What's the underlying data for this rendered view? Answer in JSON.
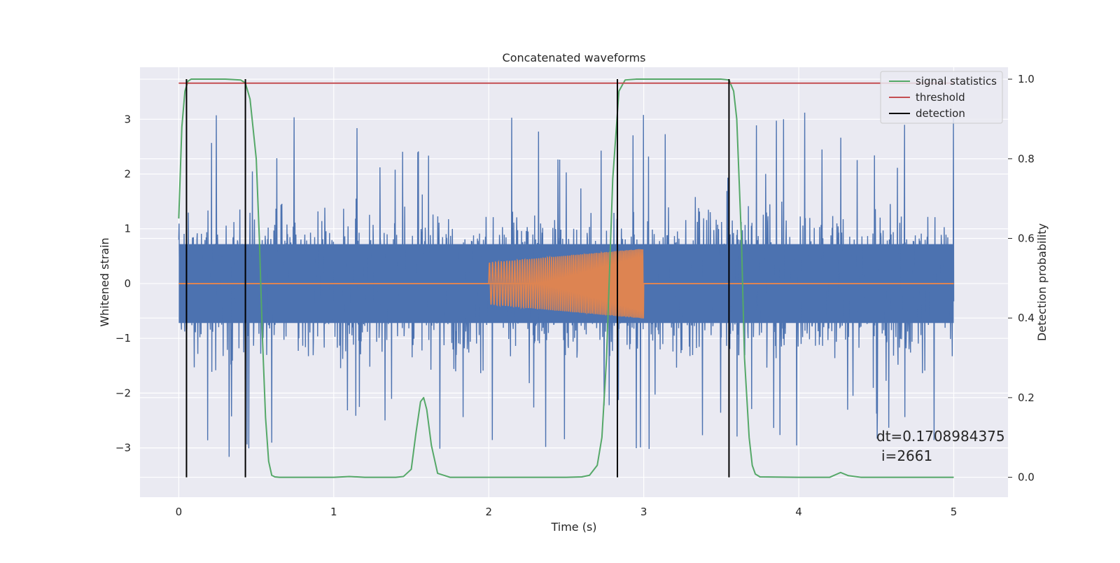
{
  "chart_data": {
    "type": "line",
    "title": "Concatenated waveforms",
    "xlabel": "Time (s)",
    "ylabel": "Whitened strain",
    "y2label": "Detection probability",
    "xlim": [
      -0.25,
      5.35
    ],
    "ylim": [
      -3.9,
      3.95
    ],
    "y2lim": [
      -0.05,
      1.03
    ],
    "x_ticks": [
      "0",
      "1",
      "2",
      "3",
      "4",
      "5"
    ],
    "x_tick_values": [
      0,
      1,
      2,
      3,
      4,
      5
    ],
    "y_ticks": [
      "−3",
      "−2",
      "−1",
      "0",
      "1",
      "2",
      "3"
    ],
    "y_tick_values": [
      -3,
      -2,
      -1,
      0,
      1,
      2,
      3
    ],
    "y2_ticks": [
      "0.0",
      "0.2",
      "0.4",
      "0.6",
      "0.8",
      "1.0"
    ],
    "y2_tick_values": [
      0.0,
      0.2,
      0.4,
      0.6,
      0.8,
      1.0
    ],
    "grid": true,
    "legend_position": "top-right",
    "colors": {
      "strain": "#4c72b0",
      "template": "#dd8452",
      "signal_statistics": "#55a868",
      "threshold": "#c44e52",
      "detection": "#000000",
      "background": "#eaeaf2"
    },
    "legend": [
      {
        "name": "signal statistics",
        "color": "#55a868"
      },
      {
        "name": "threshold",
        "color": "#c44e52"
      },
      {
        "name": "detection",
        "color": "#000000"
      }
    ],
    "series": [
      {
        "name": "signal statistics",
        "axis": "right",
        "x": [
          0.0,
          0.02,
          0.04,
          0.06,
          0.08,
          0.1,
          0.2,
          0.3,
          0.4,
          0.43,
          0.46,
          0.5,
          0.52,
          0.54,
          0.56,
          0.58,
          0.6,
          0.62,
          0.65,
          0.7,
          0.8,
          1.0,
          1.1,
          1.2,
          1.4,
          1.45,
          1.5,
          1.53,
          1.56,
          1.58,
          1.6,
          1.63,
          1.67,
          1.75,
          2.0,
          2.5,
          2.6,
          2.65,
          2.7,
          2.73,
          2.76,
          2.8,
          2.84,
          2.88,
          2.95,
          3.1,
          3.3,
          3.5,
          3.55,
          3.58,
          3.6,
          3.63,
          3.65,
          3.68,
          3.7,
          3.72,
          3.75,
          4.0,
          4.2,
          4.27,
          4.32,
          4.4,
          4.6,
          4.8,
          5.0
        ],
        "y": [
          0.65,
          0.88,
          0.97,
          0.995,
          1.0,
          1.0,
          1.0,
          1.0,
          0.998,
          0.99,
          0.95,
          0.8,
          0.6,
          0.35,
          0.15,
          0.04,
          0.005,
          0.001,
          0.0,
          0.0,
          0.0,
          0.0,
          0.002,
          0.0,
          0.0,
          0.002,
          0.02,
          0.11,
          0.19,
          0.2,
          0.17,
          0.08,
          0.01,
          0.0,
          0.0,
          0.0,
          0.001,
          0.005,
          0.03,
          0.1,
          0.3,
          0.75,
          0.97,
          0.998,
          1.0,
          1.0,
          1.0,
          1.0,
          0.998,
          0.97,
          0.9,
          0.6,
          0.3,
          0.1,
          0.03,
          0.008,
          0.001,
          0.0,
          0.0,
          0.012,
          0.004,
          0.0,
          0.0,
          0.0,
          0.0
        ]
      },
      {
        "name": "threshold",
        "axis": "right",
        "x": [
          0.0,
          5.0
        ],
        "y": [
          0.99,
          0.99
        ]
      },
      {
        "name": "detection",
        "axis": "right",
        "type": "vlines",
        "x": [
          0.05,
          0.43,
          2.83,
          3.55
        ],
        "ymin": 0.0,
        "ymax": 1.0
      }
    ],
    "strain_waveform": {
      "axis": "left",
      "x_range": [
        0.0,
        5.0
      ],
      "core_band": [
        -0.72,
        0.72
      ],
      "typical_peak_range": [
        -2.2,
        2.1
      ],
      "max_peak": 3.6,
      "min_peak": -3.6
    },
    "template_waveform": {
      "axis": "left",
      "baseline_x": [
        0.0,
        5.0
      ],
      "baseline_y": 0.0,
      "chirp_x_range": [
        2.0,
        3.0
      ],
      "chirp_amplitude_start": 0.38,
      "chirp_amplitude_end": 0.64
    },
    "annotations": [
      "dt=0.1708984375",
      "i=2661"
    ]
  }
}
